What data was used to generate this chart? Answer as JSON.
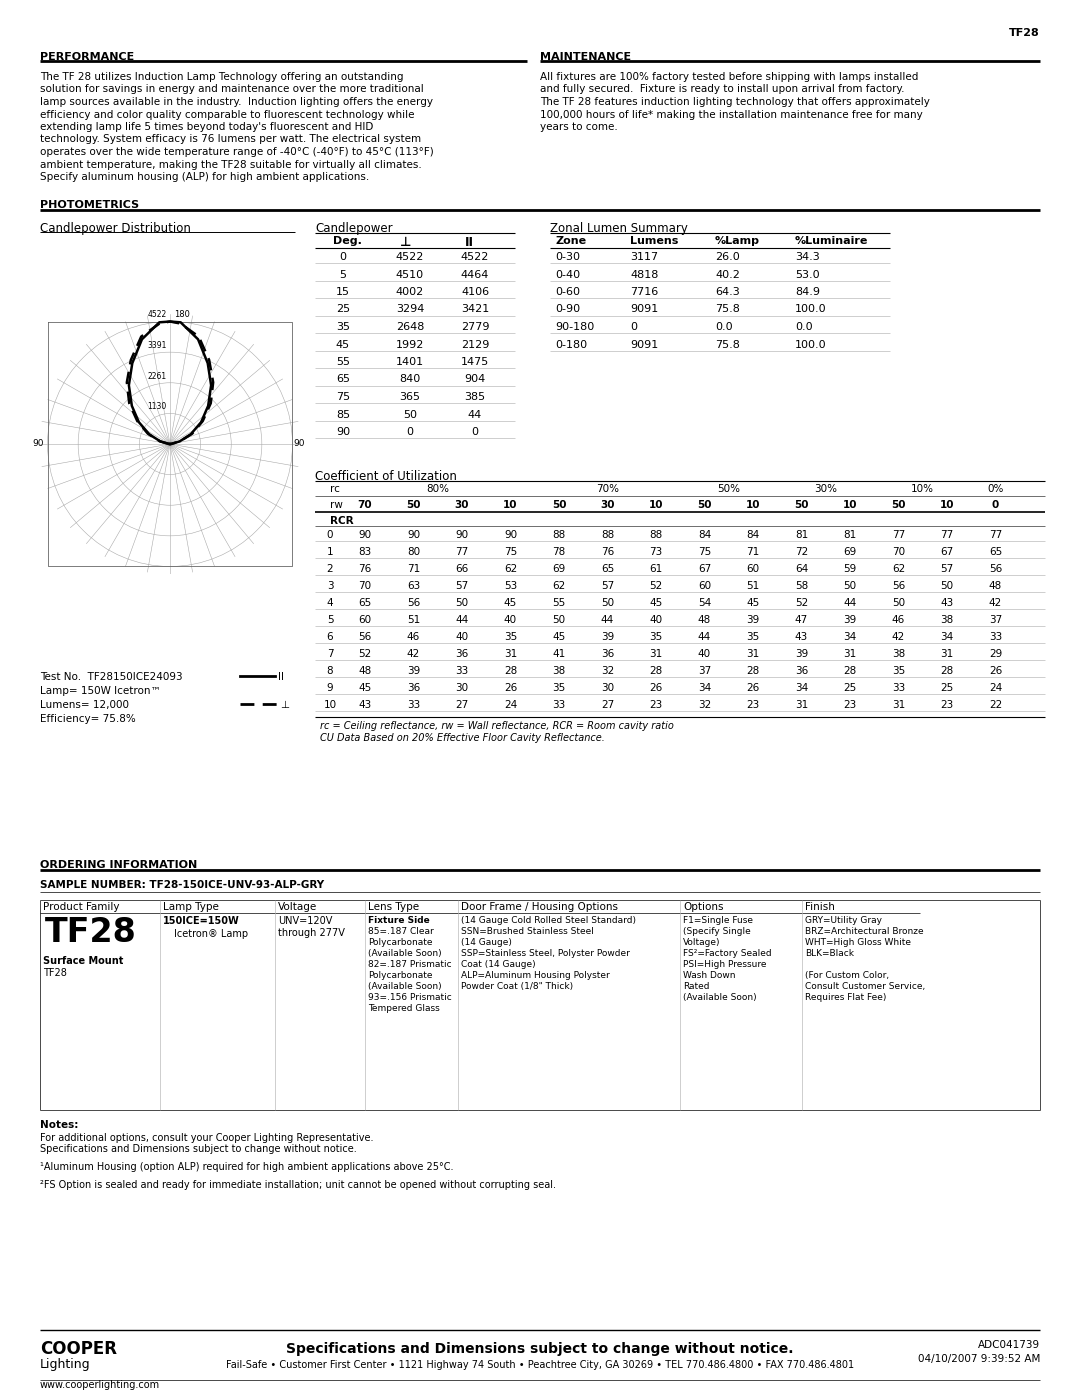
{
  "title_top_right": "TF28",
  "section_performance_title": "PERFORMANCE",
  "section_maintenance_title": "MAINTENANCE",
  "performance_text": "The TF 28 utilizes Induction Lamp Technology offering an outstanding\nsolution for savings in energy and maintenance over the more traditional\nlamp sources available in the industry.  Induction lighting offers the energy\nefficiency and color quality comparable to fluorescent technology while\nextending lamp life 5 times beyond today's fluorescent and HID\ntechnology. System efficacy is 76 lumens per watt. The electrical system\noperates over the wide temperature range of -40°C (-40°F) to 45°C (113°F)\nambient temperature, making the TF28 suitable for virtually all climates.\nSpecify aluminum housing (ALP) for high ambient applications.",
  "maintenance_text": "All fixtures are 100% factory tested before shipping with lamps installed\nand fully secured.  Fixture is ready to install upon arrival from factory.\nThe TF 28 features induction lighting technology that offers approximately\n100,000 hours of life* making the installation maintenance free for many\nyears to come.",
  "section_photometrics_title": "PHOTOMETRICS",
  "candlepower_dist_title": "Candlepower Distribution",
  "candlepower_table_title": "Candlepower",
  "zonal_lumen_title": "Zonal Lumen Summary",
  "cp_radii": [
    1130,
    2261,
    3391,
    4522
  ],
  "cp_table_headers": [
    "Deg.",
    "⊥",
    "II"
  ],
  "cp_table_data": [
    [
      0,
      4522,
      4522
    ],
    [
      5,
      4510,
      4464
    ],
    [
      15,
      4002,
      4106
    ],
    [
      25,
      3294,
      3421
    ],
    [
      35,
      2648,
      2779
    ],
    [
      45,
      1992,
      2129
    ],
    [
      55,
      1401,
      1475
    ],
    [
      65,
      840,
      904
    ],
    [
      75,
      365,
      385
    ],
    [
      85,
      50,
      44
    ],
    [
      90,
      0,
      0
    ]
  ],
  "zonal_headers": [
    "Zone",
    "Lumens",
    "%Lamp",
    "%Luminaire"
  ],
  "zonal_data": [
    [
      "0-30",
      3117,
      26.0,
      34.3
    ],
    [
      "0-40",
      4818,
      40.2,
      53.0
    ],
    [
      "0-60",
      7716,
      64.3,
      84.9
    ],
    [
      "0-90",
      9091,
      75.8,
      100.0
    ],
    [
      "90-180",
      0,
      0.0,
      0.0
    ],
    [
      "0-180",
      9091,
      75.8,
      100.0
    ]
  ],
  "test_no": "Test No.  TF28150ICE24093",
  "lamp": "Lamp= 150W Icetron™",
  "lumens": "Lumens= 12,000",
  "efficiency": "Efficiency= 75.8%",
  "cu_title": "Coefficient of Utilization",
  "cu_data": [
    [
      0,
      90,
      90,
      90,
      90,
      88,
      88,
      88,
      84,
      84,
      81,
      81,
      77,
      77,
      77
    ],
    [
      1,
      83,
      80,
      77,
      75,
      78,
      76,
      73,
      75,
      71,
      72,
      69,
      70,
      67,
      65
    ],
    [
      2,
      76,
      71,
      66,
      62,
      69,
      65,
      61,
      67,
      60,
      64,
      59,
      62,
      57,
      56
    ],
    [
      3,
      70,
      63,
      57,
      53,
      62,
      57,
      52,
      60,
      51,
      58,
      50,
      56,
      50,
      48
    ],
    [
      4,
      65,
      56,
      50,
      45,
      55,
      50,
      45,
      54,
      45,
      52,
      44,
      50,
      43,
      42
    ],
    [
      5,
      60,
      51,
      44,
      40,
      50,
      44,
      40,
      48,
      39,
      47,
      39,
      46,
      38,
      37
    ],
    [
      6,
      56,
      46,
      40,
      35,
      45,
      39,
      35,
      44,
      35,
      43,
      34,
      42,
      34,
      33
    ],
    [
      7,
      52,
      42,
      36,
      31,
      41,
      36,
      31,
      40,
      31,
      39,
      31,
      38,
      31,
      29
    ],
    [
      8,
      48,
      39,
      33,
      28,
      38,
      32,
      28,
      37,
      28,
      36,
      28,
      35,
      28,
      26
    ],
    [
      9,
      45,
      36,
      30,
      26,
      35,
      30,
      26,
      34,
      26,
      34,
      25,
      33,
      25,
      24
    ],
    [
      10,
      43,
      33,
      27,
      24,
      33,
      27,
      23,
      32,
      23,
      31,
      23,
      31,
      23,
      22
    ]
  ],
  "cu_footnote1": "rc = Ceiling reflectance, rw = Wall reflectance, RCR = Room cavity ratio",
  "cu_footnote2": "CU Data Based on 20% Effective Floor Cavity Reflectance.",
  "section_ordering_title": "ORDERING INFORMATION",
  "sample_number_label": "SAMPLE NUMBER: TF28-150ICE-UNV-93-ALP-GRY",
  "ordering_headers": [
    "Product Family",
    "Lamp Type",
    "Voltage",
    "Lens Type",
    "Door Frame / Housing Options",
    "Options",
    "Finish"
  ],
  "product_family_big": "TF28",
  "lens_type_sub": "Fixture Side\n85=.187 Clear\nPolycarbonate\n(Available Soon)\n82=.187 Prismatic\nPolycarbonate\n(Available Soon)\n93=.156 Prismatic\nTempered Glass",
  "door_frame_sub": "(14 Gauge Cold Rolled Steel Standard)\nSSN=Brushed Stainless Steel\n(14 Gauge)\nSSP=Stainless Steel, Polyster Powder\nCoat (14 Gauge)\nALP=Aluminum Housing Polyster\nPowder Coat (1/8\" Thick)",
  "options_sub": "F1=Single Fuse\n(Specify Single\nVoltage)\nFS²=Factory Sealed\nPSI=High Pressure\nWash Down\nRated\n(Available Soon)",
  "finish_sub": "GRY=Utility Gray\nBRZ=Architectural Bronze\nWHT=High Gloss White\nBLK=Black\n\n(For Custom Color,\nConsult Customer Service,\nRequires Flat Fee)",
  "notes_title": "Notes:",
  "notes_lines": [
    "For additional options, consult your Cooper Lighting Representative.",
    "Specifications and Dimensions subject to change without notice.",
    "",
    "¹Aluminum Housing (option ALP) required for high ambient applications above 25°C.",
    "",
    "²FS Option is sealed and ready for immediate installation; unit cannot be opened without corrupting seal."
  ],
  "footer_website": "www.cooperlighting.com",
  "footer_tagline": "Specifications and Dimensions subject to change without notice.",
  "footer_address": "Fail-Safe • Customer First Center • 1121 Highway 74 South • Peachtree City, GA 30269 • TEL 770.486.4800 • FAX 770.486.4801",
  "footer_doc": "ADC041739",
  "footer_date": "04/10/2007 9:39:52 AM"
}
